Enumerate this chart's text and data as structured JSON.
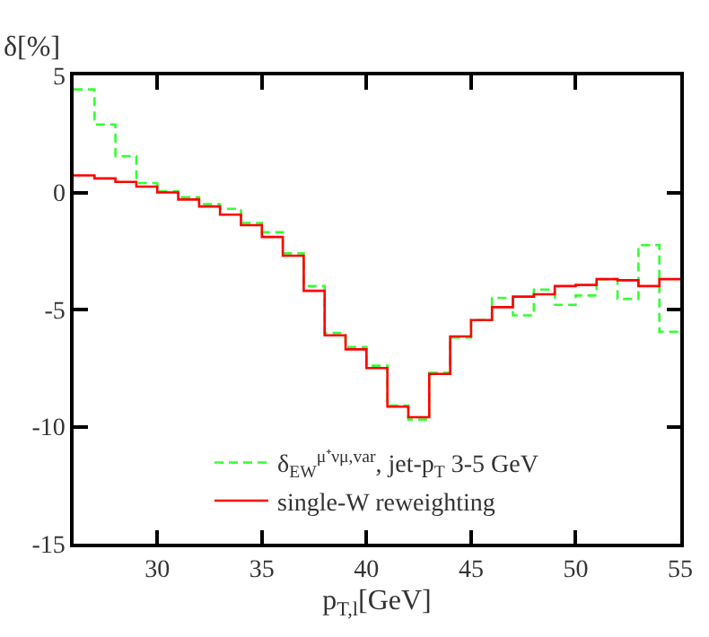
{
  "chart_data": {
    "type": "histogram",
    "ylabel": "δ[%]",
    "xlabel": "p$_{T,l}$[GeV]",
    "bins": [
      26,
      27,
      28,
      29,
      30,
      31,
      32,
      33,
      34,
      35,
      36,
      37,
      38,
      39,
      40,
      41,
      42,
      43,
      44,
      45,
      46,
      47,
      48,
      49,
      50,
      51,
      52,
      53,
      54,
      55
    ],
    "series": [
      {
        "name": "δ$_{EW}$$^{μ⁺νμ,var}$, jet-p$_{T}$ 3-5 GeV",
        "color": "#33ff33",
        "line_style": "dashed",
        "values": [
          4.4,
          2.9,
          1.55,
          0.4,
          0.05,
          -0.2,
          -0.5,
          -0.7,
          -1.3,
          -1.7,
          -2.6,
          -4.0,
          -6.0,
          -6.6,
          -7.4,
          -9.1,
          -9.7,
          -7.7,
          -6.2,
          -5.45,
          -4.5,
          -5.25,
          -4.15,
          -4.8,
          -4.4,
          -3.7,
          -4.55,
          -2.25,
          -5.95
        ]
      },
      {
        "name": "single-W reweighting",
        "color": "#ff0000",
        "line_style": "solid",
        "values": [
          0.73,
          0.6,
          0.45,
          0.25,
          0.0,
          -0.3,
          -0.6,
          -0.95,
          -1.4,
          -1.9,
          -2.7,
          -4.2,
          -6.1,
          -6.7,
          -7.5,
          -9.15,
          -9.6,
          -7.75,
          -6.15,
          -5.45,
          -4.9,
          -4.45,
          -4.35,
          -4.0,
          -3.95,
          -3.7,
          -3.75,
          -4.0,
          -3.7
        ]
      }
    ],
    "xlim": [
      26,
      55
    ],
    "xticks": [
      30,
      35,
      40,
      45,
      50,
      55
    ],
    "ylim": [
      -15,
      5
    ],
    "yticks": [
      -15,
      -10,
      -5,
      0,
      5
    ],
    "legend": "bottom",
    "marker": "none"
  }
}
